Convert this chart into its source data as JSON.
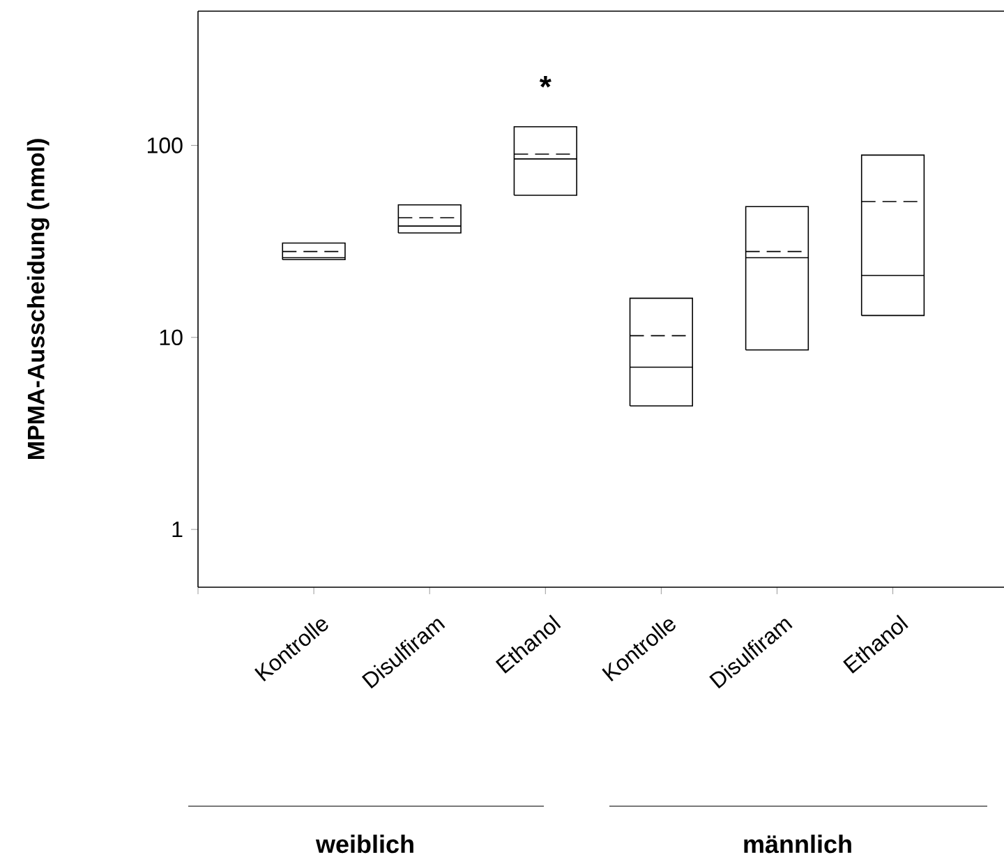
{
  "chart_data": {
    "type": "box",
    "ylabel": "MPMA-Ausscheidung (nmol)",
    "categories": [
      "Kontrolle",
      "Disulfiram",
      "Ethanol",
      "Kontrolle",
      "Disulfiram",
      "Ethanol"
    ],
    "boxes": [
      {
        "low": 25.4,
        "q1": 25.4,
        "median": 26,
        "q3": 31,
        "high": 31,
        "mean": 28
      },
      {
        "low": 35,
        "q1": 35,
        "median": 38,
        "q3": 49,
        "high": 49,
        "mean": 42
      },
      {
        "low": 55,
        "q1": 55,
        "median": 85,
        "q3": 125,
        "high": 125,
        "mean": 90
      },
      {
        "low": 4.4,
        "q1": 4.4,
        "median": 7,
        "q3": 16,
        "high": 16,
        "mean": 10.2
      },
      {
        "low": 8.6,
        "q1": 8.6,
        "median": 26,
        "q3": 48,
        "high": 48,
        "mean": 28
      },
      {
        "low": 13,
        "q1": 13,
        "median": 21,
        "q3": 89,
        "high": 89,
        "mean": 51
      }
    ],
    "log": "y",
    "ylim": [
      0.5,
      500
    ],
    "yticks": [
      1,
      10,
      100
    ],
    "grid": false,
    "annotations": [
      "*",
      "weiblich",
      "männlich"
    ]
  }
}
